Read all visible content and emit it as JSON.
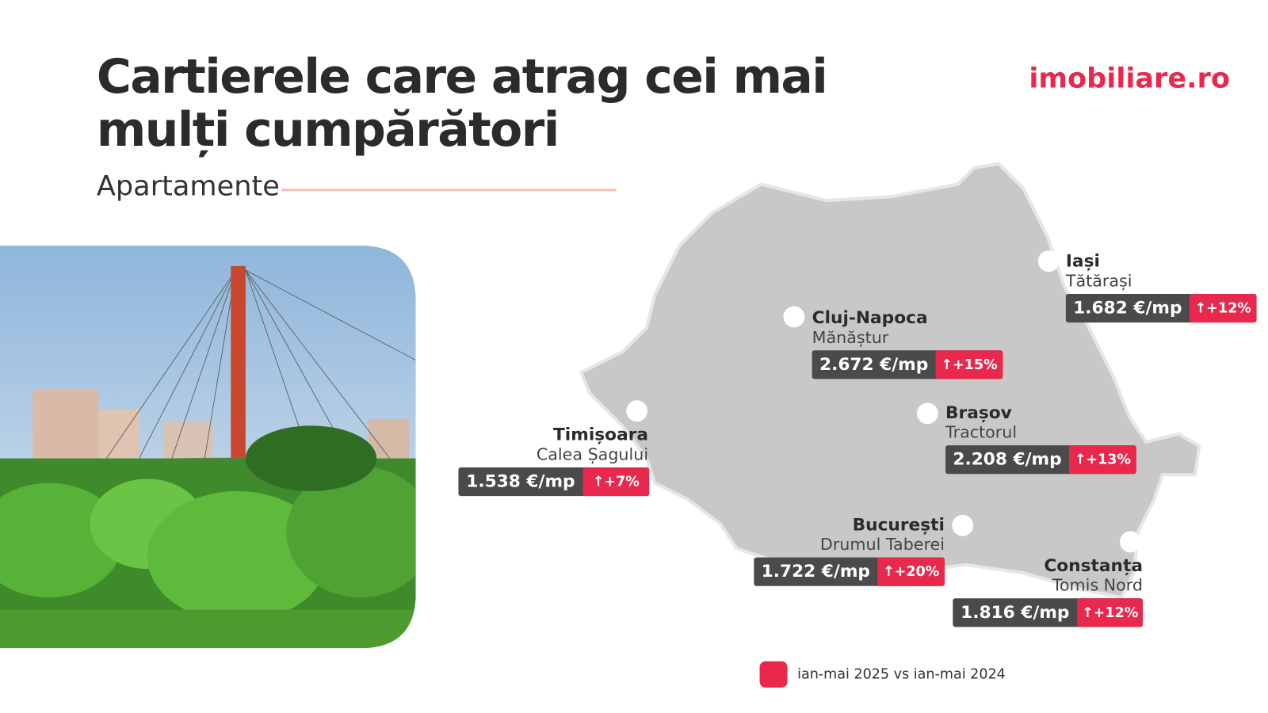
{
  "header": {
    "title": [
      "Cartierele care atrag cei mai",
      "mulți cumpărători"
    ],
    "subtitle": "Apartamente",
    "logo": "imobiliare.ro"
  },
  "cities": [
    {
      "city": "Iași",
      "district": "Tătărași",
      "price": "1.682 €/mp",
      "change": "↑+12%"
    },
    {
      "city": "Cluj-Napoca",
      "district": "Mănăștur",
      "price": "2.672 €/mp",
      "change": "↑+15%"
    },
    {
      "city": "Brașov",
      "district": "Tractorul",
      "price": "2.208 €/mp",
      "change": "↑+13%"
    },
    {
      "city": "Timișoara",
      "district": "Calea Șagului",
      "price": "1.538 €/mp",
      "change": "↑+7%"
    },
    {
      "city": "București",
      "district": "Drumul Taberei",
      "price": "1.722 €/mp",
      "change": "↑+20%"
    },
    {
      "city": "Constanța",
      "district": "Tomis Nord",
      "price": "1.816 €/mp",
      "change": "↑+12%"
    }
  ],
  "legend": {
    "label": "ian-mai 2025 vs ian-mai 2024"
  }
}
